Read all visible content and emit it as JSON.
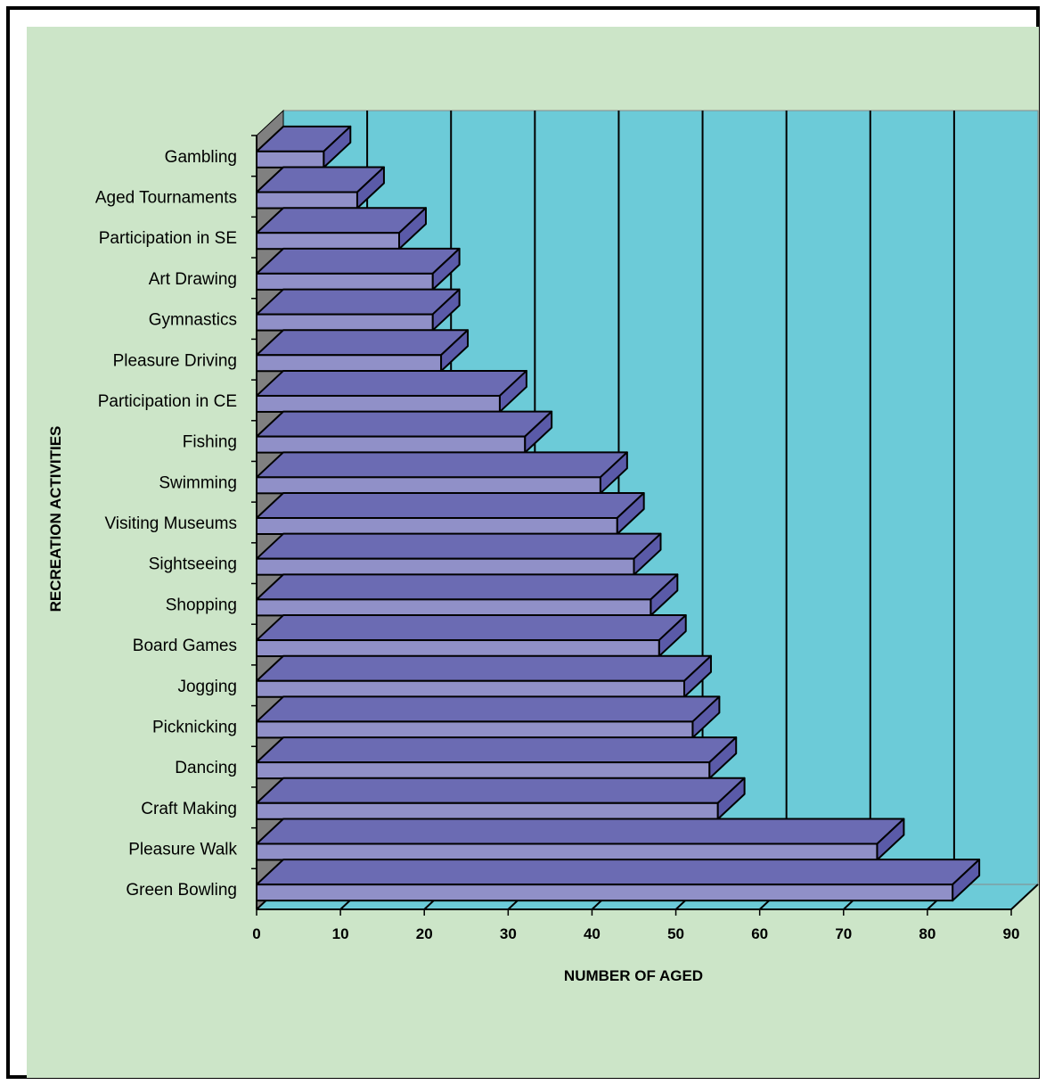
{
  "chart_data": {
    "type": "bar",
    "orientation": "horizontal",
    "style": "3d",
    "title": "",
    "xlabel": "NUMBER OF AGED",
    "ylabel": "RECREATION ACTIVITIES",
    "xlim": [
      0,
      90
    ],
    "xticks": [
      0,
      10,
      20,
      30,
      40,
      50,
      60,
      70,
      80,
      90
    ],
    "grid": true,
    "legend": "none",
    "categories": [
      "Gambling",
      "Aged Tournaments",
      "Participation in SE",
      "Art Drawing",
      "Gymnastics",
      "Pleasure Driving",
      "Participation in CE",
      "Fishing",
      "Swimming",
      "Visiting Museums",
      "Sightseeing",
      "Shopping",
      "Board Games",
      "Jogging",
      "Picknicking",
      "Dancing",
      "Craft Making",
      "Pleasure Walk",
      "Green Bowling"
    ],
    "values": [
      8,
      12,
      17,
      21,
      21,
      22,
      29,
      32,
      41,
      43,
      45,
      47,
      48,
      51,
      52,
      54,
      55,
      74,
      83
    ],
    "colors": {
      "bar_front": "#9090c8",
      "bar_top": "#6b6bb3",
      "bar_side": "#5a5aa8",
      "wall": "#6ccbd8",
      "wall_shade": "#808080",
      "background": "#cce5c8",
      "border": "#000000"
    }
  }
}
